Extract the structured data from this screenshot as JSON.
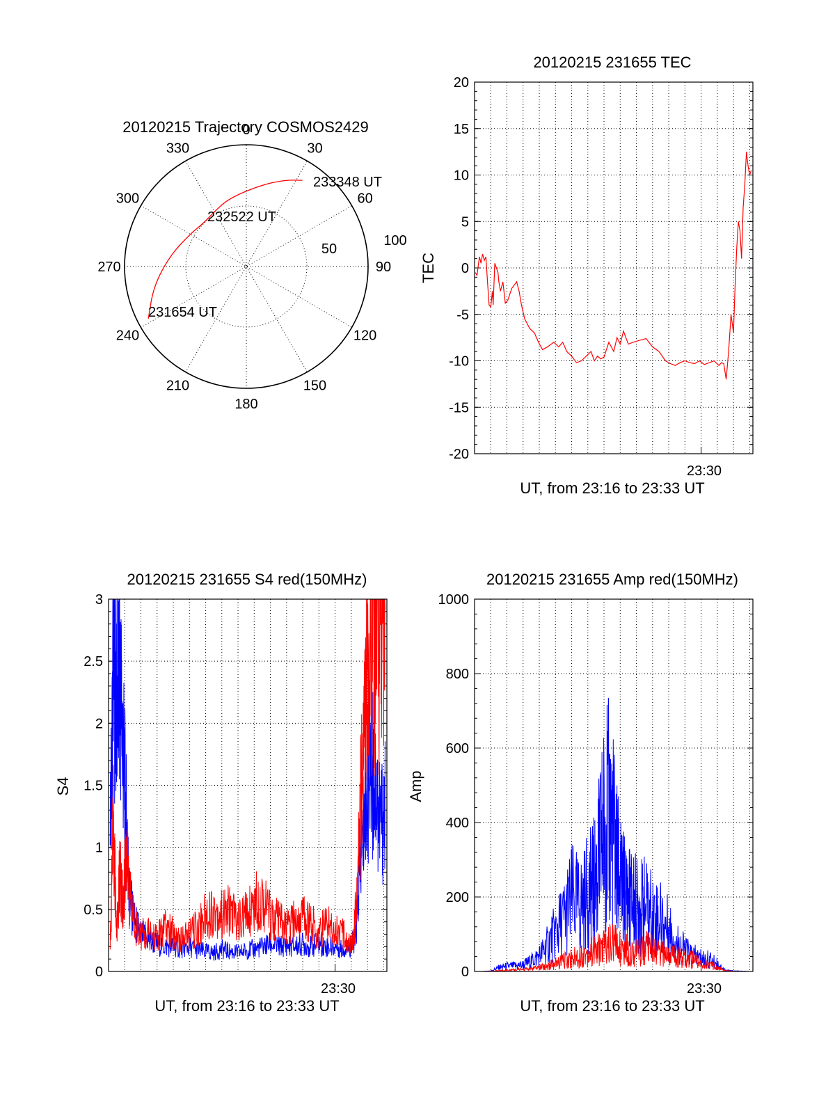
{
  "colors": {
    "red": "#ff0000",
    "blue": "#0000ff",
    "grid": "#000000"
  },
  "chart_data": [
    {
      "type": "polar",
      "title": "20120215 Trajectory COSMOS2429",
      "azimuth_labels": [
        "0",
        "30",
        "60",
        "90",
        "120",
        "150",
        "180",
        "210",
        "240",
        "270",
        "300",
        "330"
      ],
      "elevation_labels": [
        "50",
        "100"
      ],
      "track": {
        "color": "#ff0000",
        "points": [
          {
            "az": 242,
            "el": 8,
            "label": "231654 UT"
          },
          {
            "az": 258,
            "el": 20
          },
          {
            "az": 278,
            "el": 33
          },
          {
            "az": 300,
            "el": 42
          },
          {
            "az": 316,
            "el": 45
          },
          {
            "az": 330,
            "el": 43
          },
          {
            "az": 346,
            "el": 38
          },
          {
            "az": 10,
            "el": 29
          },
          {
            "az": 24,
            "el": 20
          },
          {
            "az": 33,
            "el": 14,
            "label": "233348 UT"
          }
        ],
        "mid_label": "232522 UT"
      }
    },
    {
      "type": "line",
      "title": "20120215 231655 TEC",
      "ylabel": "TEC",
      "xlabel": "UT, from 23:16 to 23:33 UT",
      "x_tick_label": "23:30",
      "ylim": [
        -20,
        20
      ],
      "yticks": [
        "20",
        "15",
        "10",
        "5",
        "0",
        "-5",
        "-10",
        "-15",
        "-20"
      ],
      "x_unit": "minutes after 23:16",
      "xlim": [
        0,
        17.2
      ],
      "series": [
        {
          "color": "#ff0000",
          "x": [
            0.05,
            0.15,
            0.3,
            0.4,
            0.5,
            0.6,
            0.7,
            0.8,
            0.9,
            1.0,
            1.1,
            1.15,
            1.25,
            1.35,
            1.45,
            1.5,
            1.6,
            1.75,
            1.9,
            2.05,
            2.3,
            2.6,
            2.75,
            2.9,
            3.1,
            3.4,
            3.7,
            3.95,
            4.2,
            4.5,
            4.9,
            5.2,
            5.45,
            5.7,
            6.0,
            6.3,
            6.6,
            6.9,
            7.2,
            7.4,
            7.6,
            7.8,
            8.0,
            8.3,
            8.6,
            8.8,
            9.0,
            9.2,
            9.5,
            9.8,
            10.2,
            10.6,
            11.0,
            11.4,
            11.8,
            12.1,
            12.4,
            12.7,
            13.0,
            13.3,
            13.6,
            13.9,
            14.2,
            14.5,
            14.8,
            15.1,
            15.25,
            15.4,
            15.55,
            15.7,
            15.85,
            16.0,
            16.1,
            16.2,
            16.3,
            16.4,
            16.5,
            16.6,
            16.7,
            16.8,
            16.9,
            17.0,
            17.1
          ],
          "y": [
            -0.5,
            -0.8,
            1.2,
            0.5,
            1.5,
            0.8,
            1.2,
            -1.5,
            -4.0,
            -4.2,
            -2.5,
            -4.0,
            0.5,
            0.0,
            -0.5,
            -1.5,
            -2.5,
            -1.5,
            -3.8,
            -3.5,
            -2.2,
            -1.5,
            -2.5,
            -4.0,
            -5.5,
            -6.5,
            -7.0,
            -8.0,
            -8.8,
            -8.5,
            -8.0,
            -8.5,
            -8.0,
            -9.0,
            -9.5,
            -10.2,
            -10.0,
            -9.5,
            -9.0,
            -10.0,
            -9.5,
            -9.8,
            -9.6,
            -8.0,
            -9.0,
            -7.5,
            -8.2,
            -6.8,
            -8.2,
            -8.0,
            -7.8,
            -7.6,
            -8.5,
            -9.0,
            -10.0,
            -10.3,
            -10.5,
            -10.2,
            -10.0,
            -10.2,
            -10.3,
            -10.0,
            -10.4,
            -10.2,
            -10.0,
            -10.5,
            -10.2,
            -10.3,
            -12.0,
            -9.0,
            -5.0,
            -7.0,
            -2.0,
            2.0,
            5.0,
            4.0,
            1.0,
            6.5,
            9.0,
            12.5,
            11.0,
            10.0,
            10.5
          ]
        }
      ]
    },
    {
      "type": "line",
      "title": "20120215 231655 S4 red(150MHz)",
      "ylabel": "S4",
      "xlabel": "UT, from 23:16 to 23:33 UT",
      "x_tick_label": "23:30",
      "ylim": [
        0,
        3
      ],
      "yticks": [
        "3",
        "2.5",
        "2",
        "1.5",
        "1",
        "0.5",
        "0"
      ],
      "x_unit": "minutes after 23:16",
      "xlim": [
        0,
        17.2
      ],
      "series": [
        {
          "name": "",
          "color": "#0000ff",
          "x": [
            0.1,
            0.3,
            0.5,
            0.7,
            0.9,
            1.1,
            1.3,
            1.6,
            2.0,
            2.5,
            3.0,
            3.5,
            4.0,
            4.5,
            5.0,
            5.5,
            6.0,
            6.5,
            7.0,
            7.5,
            8.0,
            8.5,
            9.0,
            9.5,
            10.0,
            10.5,
            11.0,
            11.5,
            12.0,
            12.5,
            13.0,
            13.5,
            14.0,
            14.5,
            15.0,
            15.3,
            15.6,
            15.9,
            16.2,
            16.5,
            16.8,
            17.1
          ],
          "y": [
            1.0,
            2.6,
            2.2,
            2.4,
            1.8,
            1.2,
            0.6,
            0.4,
            0.3,
            0.25,
            0.22,
            0.2,
            0.2,
            0.18,
            0.2,
            0.17,
            0.16,
            0.15,
            0.18,
            0.16,
            0.15,
            0.17,
            0.18,
            0.2,
            0.22,
            0.2,
            0.21,
            0.2,
            0.22,
            0.2,
            0.22,
            0.2,
            0.2,
            0.18,
            0.2,
            0.3,
            0.9,
            1.4,
            1.7,
            1.5,
            1.2,
            1.3
          ]
        },
        {
          "name": "",
          "color": "#ff0000",
          "x": [
            0.1,
            0.3,
            0.5,
            0.7,
            0.9,
            1.1,
            1.3,
            1.6,
            2.0,
            2.5,
            3.0,
            3.5,
            4.0,
            4.5,
            5.0,
            5.5,
            6.0,
            6.5,
            7.0,
            7.5,
            8.0,
            8.5,
            9.0,
            9.5,
            10.0,
            10.5,
            11.0,
            11.5,
            12.0,
            12.5,
            13.0,
            13.5,
            14.0,
            14.5,
            15.0,
            15.3,
            15.6,
            15.9,
            16.2,
            16.5,
            16.8,
            17.1
          ],
          "y": [
            0.2,
            1.2,
            0.3,
            0.8,
            0.5,
            1.0,
            0.6,
            0.4,
            0.3,
            0.3,
            0.28,
            0.35,
            0.3,
            0.25,
            0.3,
            0.35,
            0.45,
            0.5,
            0.45,
            0.5,
            0.4,
            0.45,
            0.55,
            0.6,
            0.45,
            0.4,
            0.35,
            0.4,
            0.45,
            0.4,
            0.3,
            0.4,
            0.35,
            0.3,
            0.2,
            0.5,
            1.4,
            2.2,
            2.6,
            2.8,
            2.9,
            3.0
          ]
        }
      ]
    },
    {
      "type": "line",
      "title": "20120215 231655 Amp red(150MHz)",
      "ylabel": "Amp",
      "xlabel": "UT, from 23:16 to 23:33 UT",
      "x_tick_label": "23:30",
      "ylim": [
        0,
        1000
      ],
      "yticks": [
        "1000",
        "800",
        "600",
        "400",
        "200",
        "0"
      ],
      "x_unit": "minutes after 23:16",
      "xlim": [
        0,
        17.2
      ],
      "series": [
        {
          "name": "",
          "color": "#0000ff",
          "x": [
            0.0,
            0.5,
            1.0,
            1.5,
            2.0,
            2.5,
            3.0,
            3.5,
            4.0,
            4.5,
            5.0,
            5.5,
            6.0,
            6.5,
            7.0,
            7.3,
            7.6,
            7.9,
            8.2,
            8.5,
            8.8,
            9.0,
            9.3,
            9.6,
            9.9,
            10.2,
            10.5,
            11.0,
            11.5,
            12.0,
            12.5,
            13.0,
            13.5,
            14.0,
            14.5,
            15.0,
            15.5,
            16.0,
            16.5,
            17.0
          ],
          "y": [
            0,
            0,
            2,
            15,
            20,
            22,
            25,
            40,
            60,
            100,
            150,
            200,
            280,
            250,
            300,
            320,
            380,
            520,
            600,
            560,
            420,
            330,
            300,
            280,
            260,
            240,
            250,
            220,
            200,
            160,
            110,
            80,
            60,
            50,
            45,
            30,
            5,
            2,
            1,
            0
          ]
        },
        {
          "name": "",
          "color": "#ff0000",
          "x": [
            0.0,
            0.5,
            1.0,
            1.5,
            2.0,
            2.5,
            3.0,
            3.5,
            4.0,
            4.5,
            5.0,
            5.5,
            6.0,
            6.5,
            7.0,
            7.5,
            8.0,
            8.5,
            9.0,
            9.5,
            10.0,
            10.5,
            11.0,
            11.5,
            12.0,
            12.5,
            13.0,
            13.5,
            14.0,
            14.5,
            15.0,
            15.5,
            16.0,
            16.5,
            17.0
          ],
          "y": [
            0,
            0,
            1,
            3,
            5,
            6,
            8,
            10,
            15,
            20,
            30,
            40,
            50,
            60,
            70,
            80,
            95,
            110,
            90,
            80,
            75,
            90,
            80,
            70,
            65,
            60,
            55,
            45,
            35,
            25,
            15,
            3,
            1,
            0,
            0
          ]
        }
      ]
    }
  ]
}
